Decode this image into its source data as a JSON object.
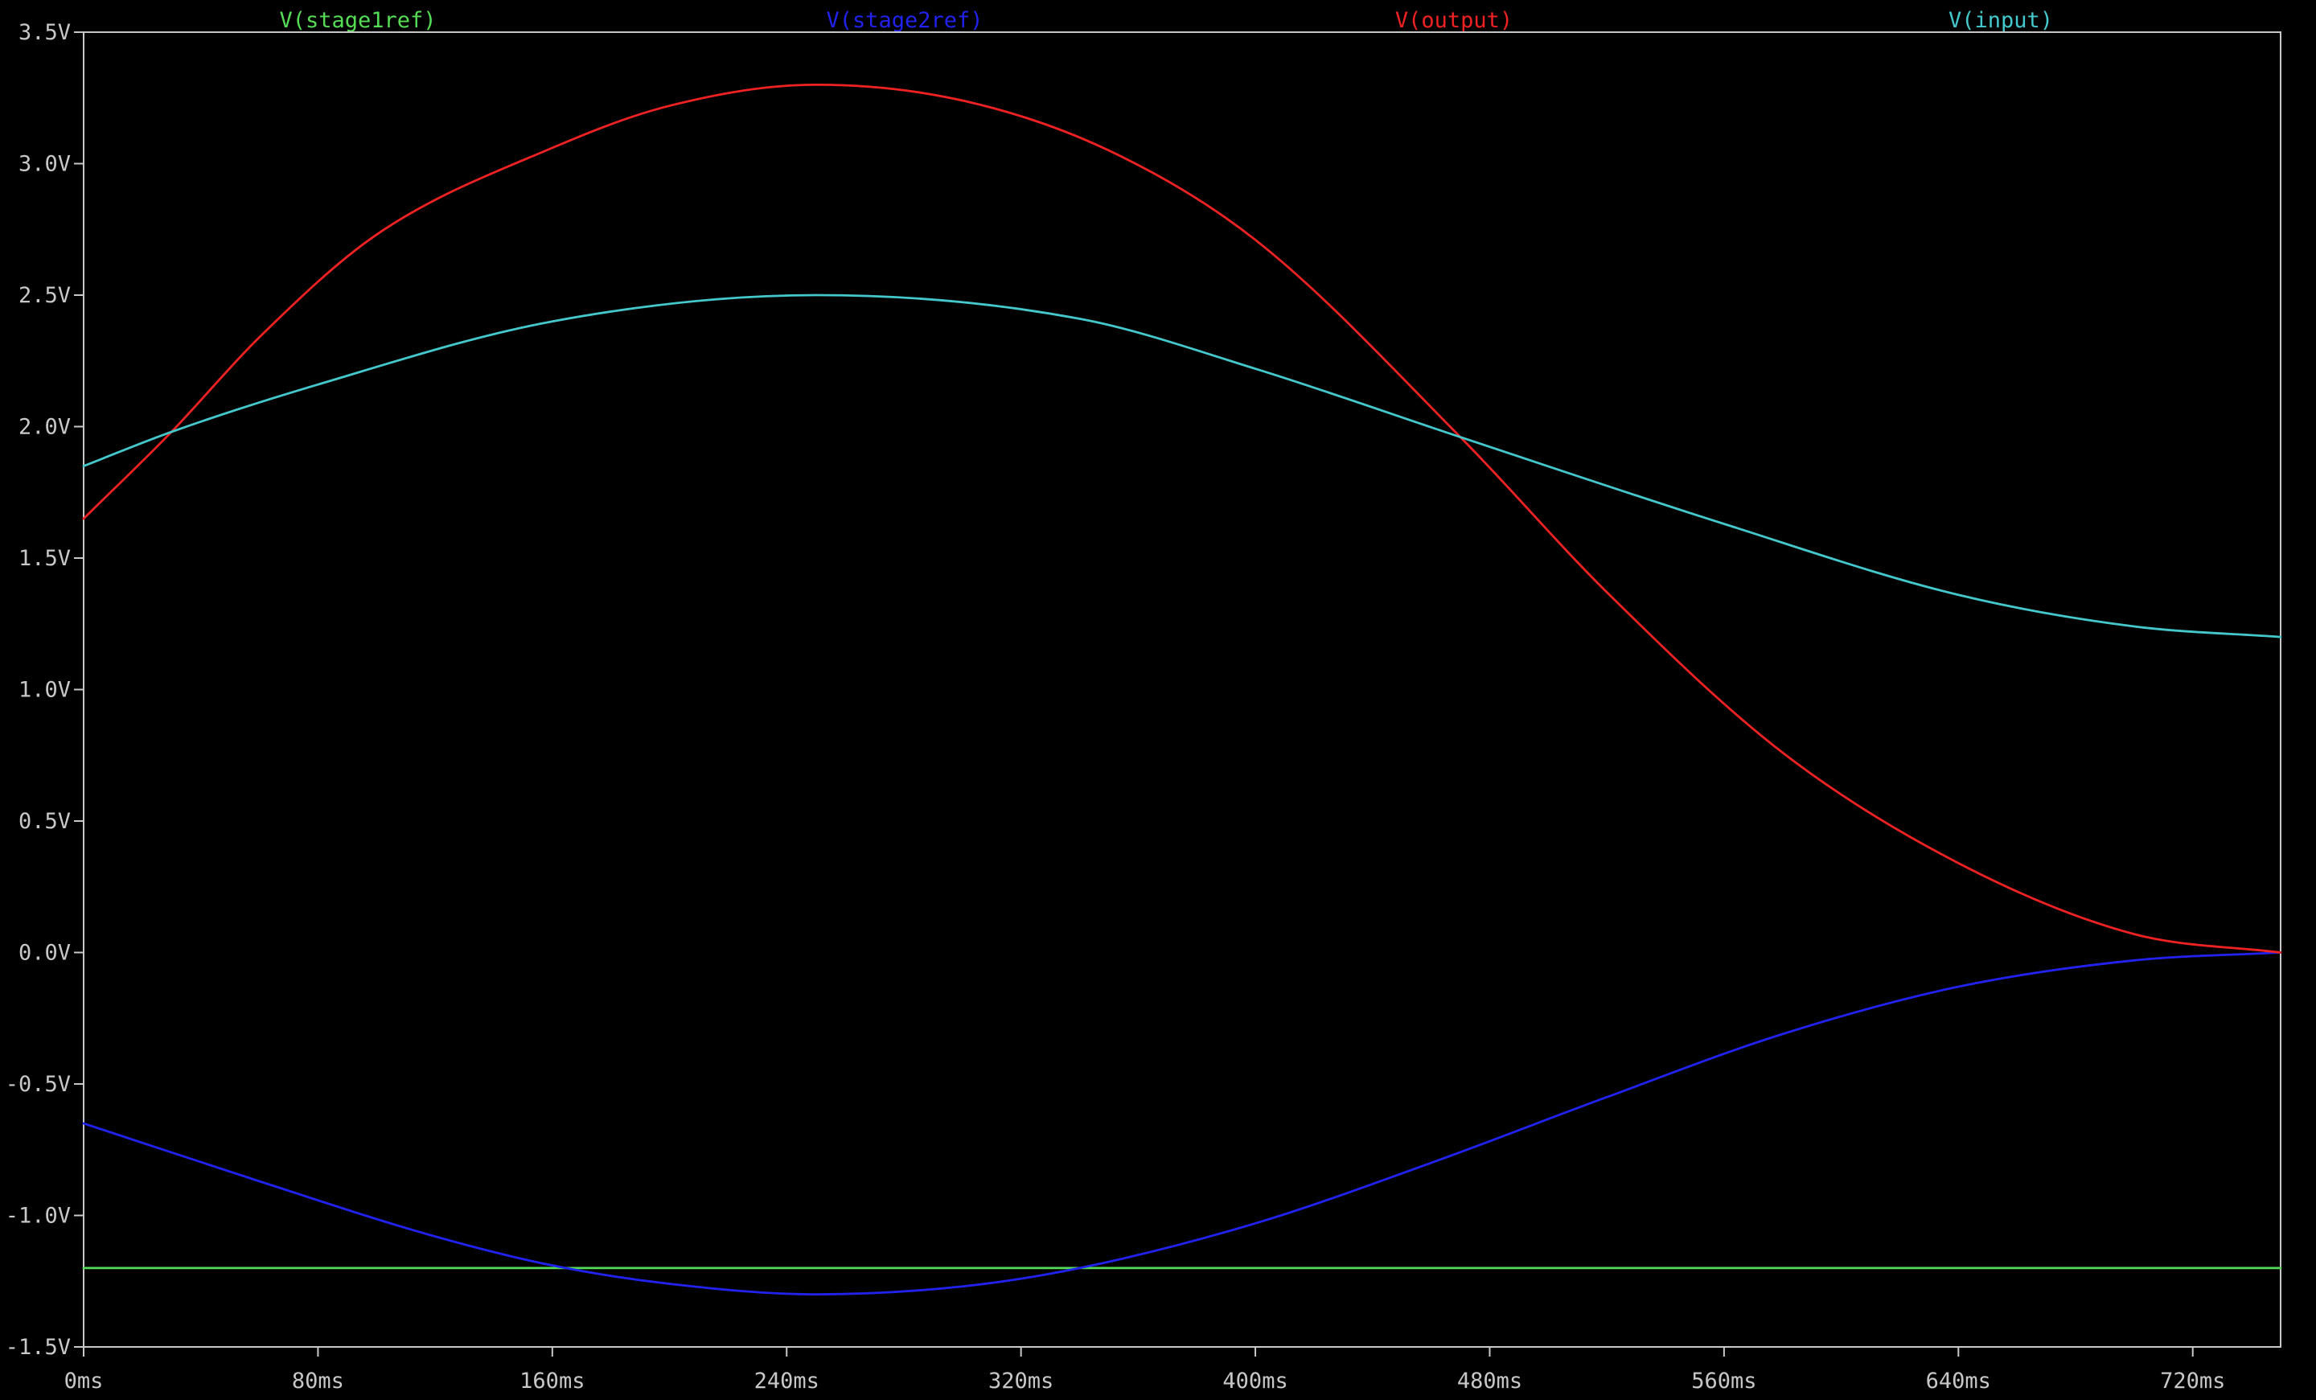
{
  "chart_data": {
    "type": "line",
    "xunit": "ms",
    "yunit": "V",
    "xlim": [
      0,
      750
    ],
    "ylim": [
      -1.5,
      3.5
    ],
    "xticks": [
      0,
      80,
      160,
      240,
      320,
      400,
      480,
      560,
      640,
      720
    ],
    "xtick_labels": [
      "0ms",
      "80ms",
      "160ms",
      "240ms",
      "320ms",
      "400ms",
      "480ms",
      "560ms",
      "640ms",
      "720ms"
    ],
    "yticks": [
      3.5,
      3.0,
      2.5,
      2.0,
      1.5,
      1.0,
      0.5,
      0.0,
      -0.5,
      -1.0,
      -1.5
    ],
    "ytick_labels": [
      "3.5V",
      "3.0V",
      "2.5V",
      "2.0V",
      "1.5V",
      "1.0V",
      "0.5V",
      "0.0V",
      "-0.5V",
      "-1.0V",
      "-1.5V"
    ],
    "grid": false,
    "legend_placement": "top",
    "background": "#000000",
    "axis_color": "#c8c8c8",
    "series": [
      {
        "name": "V(stage1ref)",
        "color": "#55dd55",
        "x": [
          0,
          750
        ],
        "y": [
          -1.2,
          -1.2
        ]
      },
      {
        "name": "V(stage2ref)",
        "color": "#2222ee",
        "x": [
          0,
          60,
          120,
          160,
          200,
          250,
          300,
          340,
          400,
          460,
          520,
          580,
          640,
          700,
          750
        ],
        "y": [
          -0.65,
          -0.87,
          -1.08,
          -1.19,
          -1.26,
          -1.3,
          -1.27,
          -1.2,
          -1.03,
          -0.8,
          -0.55,
          -0.31,
          -0.13,
          -0.03,
          0.0
        ]
      },
      {
        "name": "V(output)",
        "color": "#ee2222",
        "x": [
          0,
          30,
          60,
          100,
          160,
          200,
          250,
          300,
          350,
          400,
          470,
          520,
          580,
          640,
          700,
          750
        ],
        "y": [
          1.65,
          1.98,
          2.34,
          2.73,
          3.06,
          3.22,
          3.3,
          3.24,
          3.05,
          2.71,
          1.96,
          1.37,
          0.76,
          0.34,
          0.07,
          0.0
        ]
      },
      {
        "name": "V(input)",
        "color": "#44c8cc",
        "x": [
          0,
          30,
          80,
          160,
          250,
          340,
          400,
          470,
          560,
          640,
          700,
          750
        ],
        "y": [
          1.85,
          1.98,
          2.16,
          2.4,
          2.5,
          2.41,
          2.22,
          1.96,
          1.63,
          1.36,
          1.24,
          1.2
        ]
      }
    ]
  }
}
